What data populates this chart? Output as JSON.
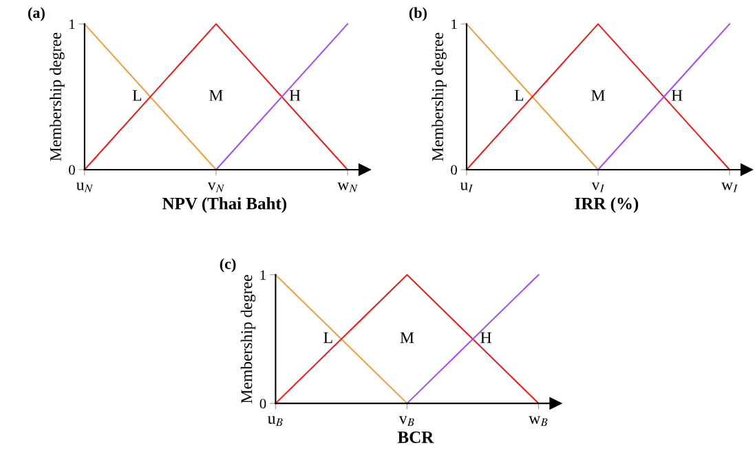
{
  "chart_data": [
    {
      "type": "line",
      "title": "(a)",
      "xlabel": "NPV (Thai Baht)",
      "ylabel": "Membership degree",
      "ylim": [
        0,
        1
      ],
      "yticks": [
        0,
        1
      ],
      "categories": [
        "u$_{N}$",
        "v$_{N}$",
        "w$_{N}$"
      ],
      "series": [
        {
          "color": "#f0a040",
          "values": [
            1,
            0,
            null
          ]
        },
        {
          "color": "#e02020",
          "values": [
            0,
            1,
            0
          ]
        },
        {
          "color": "#a050f0",
          "values": [
            null,
            0,
            1
          ]
        }
      ],
      "annotations": [
        "L",
        "M",
        "H"
      ]
    },
    {
      "type": "line",
      "title": "(b)",
      "xlabel": "IRR (%)",
      "ylabel": "Membership degree",
      "ylim": [
        0,
        1
      ],
      "yticks": [
        0,
        1
      ],
      "categories": [
        "u$_{I}$",
        "v$_{I}$",
        "w$_{I}$"
      ],
      "series": [
        {
          "color": "#f0a040",
          "values": [
            1,
            0,
            null
          ]
        },
        {
          "color": "#e02020",
          "values": [
            0,
            1,
            0
          ]
        },
        {
          "color": "#a050f0",
          "values": [
            null,
            0,
            1
          ]
        }
      ],
      "annotations": [
        "L",
        "M",
        "H"
      ]
    },
    {
      "type": "line",
      "title": "(c)",
      "xlabel": "BCR",
      "ylabel": "Membership degree",
      "ylim": [
        0,
        1
      ],
      "yticks": [
        0,
        1
      ],
      "categories": [
        "u$_{B}$",
        "v$_{B}$",
        "w$_{B}$"
      ],
      "series": [
        {
          "color": "#f0a040",
          "values": [
            1,
            0,
            null
          ]
        },
        {
          "color": "#e02020",
          "values": [
            0,
            1,
            0
          ]
        },
        {
          "color": "#a050f0",
          "values": [
            null,
            0,
            1
          ]
        }
      ],
      "annotations": [
        "L",
        "M",
        "H"
      ]
    }
  ]
}
